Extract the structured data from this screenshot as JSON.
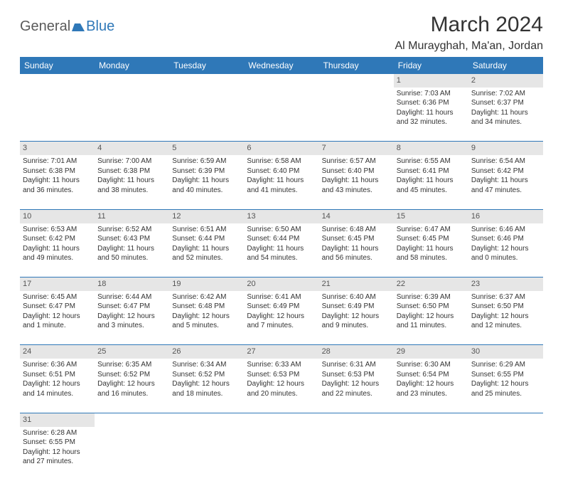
{
  "logo": {
    "part1": "General",
    "part2": "Blue"
  },
  "title": "March 2024",
  "location": "Al Murayghah, Ma'an, Jordan",
  "colors": {
    "accent": "#2f78b8",
    "header_text": "#ffffff",
    "daynum_bg": "#e6e6e6",
    "text": "#333333"
  },
  "day_headers": [
    "Sunday",
    "Monday",
    "Tuesday",
    "Wednesday",
    "Thursday",
    "Friday",
    "Saturday"
  ],
  "weeks": [
    {
      "nums": [
        "",
        "",
        "",
        "",
        "",
        "1",
        "2"
      ],
      "cells": [
        null,
        null,
        null,
        null,
        null,
        {
          "sunrise": "Sunrise: 7:03 AM",
          "sunset": "Sunset: 6:36 PM",
          "day1": "Daylight: 11 hours",
          "day2": "and 32 minutes."
        },
        {
          "sunrise": "Sunrise: 7:02 AM",
          "sunset": "Sunset: 6:37 PM",
          "day1": "Daylight: 11 hours",
          "day2": "and 34 minutes."
        }
      ]
    },
    {
      "nums": [
        "3",
        "4",
        "5",
        "6",
        "7",
        "8",
        "9"
      ],
      "cells": [
        {
          "sunrise": "Sunrise: 7:01 AM",
          "sunset": "Sunset: 6:38 PM",
          "day1": "Daylight: 11 hours",
          "day2": "and 36 minutes."
        },
        {
          "sunrise": "Sunrise: 7:00 AM",
          "sunset": "Sunset: 6:38 PM",
          "day1": "Daylight: 11 hours",
          "day2": "and 38 minutes."
        },
        {
          "sunrise": "Sunrise: 6:59 AM",
          "sunset": "Sunset: 6:39 PM",
          "day1": "Daylight: 11 hours",
          "day2": "and 40 minutes."
        },
        {
          "sunrise": "Sunrise: 6:58 AM",
          "sunset": "Sunset: 6:40 PM",
          "day1": "Daylight: 11 hours",
          "day2": "and 41 minutes."
        },
        {
          "sunrise": "Sunrise: 6:57 AM",
          "sunset": "Sunset: 6:40 PM",
          "day1": "Daylight: 11 hours",
          "day2": "and 43 minutes."
        },
        {
          "sunrise": "Sunrise: 6:55 AM",
          "sunset": "Sunset: 6:41 PM",
          "day1": "Daylight: 11 hours",
          "day2": "and 45 minutes."
        },
        {
          "sunrise": "Sunrise: 6:54 AM",
          "sunset": "Sunset: 6:42 PM",
          "day1": "Daylight: 11 hours",
          "day2": "and 47 minutes."
        }
      ]
    },
    {
      "nums": [
        "10",
        "11",
        "12",
        "13",
        "14",
        "15",
        "16"
      ],
      "cells": [
        {
          "sunrise": "Sunrise: 6:53 AM",
          "sunset": "Sunset: 6:42 PM",
          "day1": "Daylight: 11 hours",
          "day2": "and 49 minutes."
        },
        {
          "sunrise": "Sunrise: 6:52 AM",
          "sunset": "Sunset: 6:43 PM",
          "day1": "Daylight: 11 hours",
          "day2": "and 50 minutes."
        },
        {
          "sunrise": "Sunrise: 6:51 AM",
          "sunset": "Sunset: 6:44 PM",
          "day1": "Daylight: 11 hours",
          "day2": "and 52 minutes."
        },
        {
          "sunrise": "Sunrise: 6:50 AM",
          "sunset": "Sunset: 6:44 PM",
          "day1": "Daylight: 11 hours",
          "day2": "and 54 minutes."
        },
        {
          "sunrise": "Sunrise: 6:48 AM",
          "sunset": "Sunset: 6:45 PM",
          "day1": "Daylight: 11 hours",
          "day2": "and 56 minutes."
        },
        {
          "sunrise": "Sunrise: 6:47 AM",
          "sunset": "Sunset: 6:45 PM",
          "day1": "Daylight: 11 hours",
          "day2": "and 58 minutes."
        },
        {
          "sunrise": "Sunrise: 6:46 AM",
          "sunset": "Sunset: 6:46 PM",
          "day1": "Daylight: 12 hours",
          "day2": "and 0 minutes."
        }
      ]
    },
    {
      "nums": [
        "17",
        "18",
        "19",
        "20",
        "21",
        "22",
        "23"
      ],
      "cells": [
        {
          "sunrise": "Sunrise: 6:45 AM",
          "sunset": "Sunset: 6:47 PM",
          "day1": "Daylight: 12 hours",
          "day2": "and 1 minute."
        },
        {
          "sunrise": "Sunrise: 6:44 AM",
          "sunset": "Sunset: 6:47 PM",
          "day1": "Daylight: 12 hours",
          "day2": "and 3 minutes."
        },
        {
          "sunrise": "Sunrise: 6:42 AM",
          "sunset": "Sunset: 6:48 PM",
          "day1": "Daylight: 12 hours",
          "day2": "and 5 minutes."
        },
        {
          "sunrise": "Sunrise: 6:41 AM",
          "sunset": "Sunset: 6:49 PM",
          "day1": "Daylight: 12 hours",
          "day2": "and 7 minutes."
        },
        {
          "sunrise": "Sunrise: 6:40 AM",
          "sunset": "Sunset: 6:49 PM",
          "day1": "Daylight: 12 hours",
          "day2": "and 9 minutes."
        },
        {
          "sunrise": "Sunrise: 6:39 AM",
          "sunset": "Sunset: 6:50 PM",
          "day1": "Daylight: 12 hours",
          "day2": "and 11 minutes."
        },
        {
          "sunrise": "Sunrise: 6:37 AM",
          "sunset": "Sunset: 6:50 PM",
          "day1": "Daylight: 12 hours",
          "day2": "and 12 minutes."
        }
      ]
    },
    {
      "nums": [
        "24",
        "25",
        "26",
        "27",
        "28",
        "29",
        "30"
      ],
      "cells": [
        {
          "sunrise": "Sunrise: 6:36 AM",
          "sunset": "Sunset: 6:51 PM",
          "day1": "Daylight: 12 hours",
          "day2": "and 14 minutes."
        },
        {
          "sunrise": "Sunrise: 6:35 AM",
          "sunset": "Sunset: 6:52 PM",
          "day1": "Daylight: 12 hours",
          "day2": "and 16 minutes."
        },
        {
          "sunrise": "Sunrise: 6:34 AM",
          "sunset": "Sunset: 6:52 PM",
          "day1": "Daylight: 12 hours",
          "day2": "and 18 minutes."
        },
        {
          "sunrise": "Sunrise: 6:33 AM",
          "sunset": "Sunset: 6:53 PM",
          "day1": "Daylight: 12 hours",
          "day2": "and 20 minutes."
        },
        {
          "sunrise": "Sunrise: 6:31 AM",
          "sunset": "Sunset: 6:53 PM",
          "day1": "Daylight: 12 hours",
          "day2": "and 22 minutes."
        },
        {
          "sunrise": "Sunrise: 6:30 AM",
          "sunset": "Sunset: 6:54 PM",
          "day1": "Daylight: 12 hours",
          "day2": "and 23 minutes."
        },
        {
          "sunrise": "Sunrise: 6:29 AM",
          "sunset": "Sunset: 6:55 PM",
          "day1": "Daylight: 12 hours",
          "day2": "and 25 minutes."
        }
      ]
    },
    {
      "nums": [
        "31",
        "",
        "",
        "",
        "",
        "",
        ""
      ],
      "cells": [
        {
          "sunrise": "Sunrise: 6:28 AM",
          "sunset": "Sunset: 6:55 PM",
          "day1": "Daylight: 12 hours",
          "day2": "and 27 minutes."
        },
        null,
        null,
        null,
        null,
        null,
        null
      ]
    }
  ]
}
